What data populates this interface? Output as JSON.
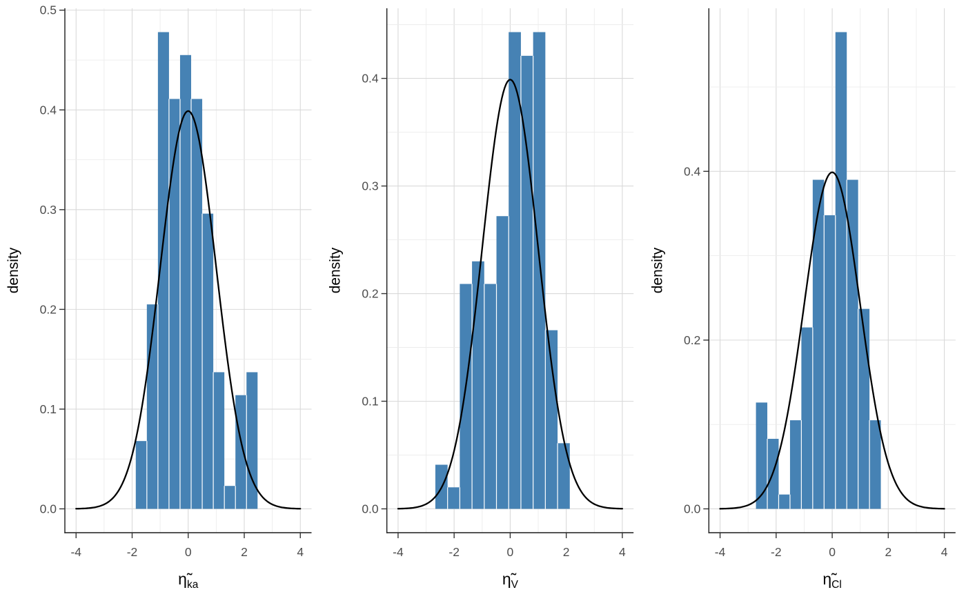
{
  "chart_data": {
    "type": "bar",
    "subtype": "histogram_with_normal_density_overlay",
    "title": "",
    "ylabel": "density",
    "grid": "on",
    "legend": "none",
    "xlim": [
      -4.4,
      4.4
    ],
    "x_ticks": [
      -4,
      -2,
      0,
      2,
      4
    ],
    "x_tick_labels": [
      "-4",
      "-2",
      "0",
      "2",
      "4"
    ],
    "panels": [
      {
        "xlabel_base": "η̃",
        "xlabel_sub": "ka",
        "ylabel": "density",
        "y_tick_values": [
          0,
          0.1,
          0.2,
          0.3,
          0.4,
          0.5
        ],
        "y_tick_labels": [
          "0.0",
          "0.1",
          "0.2",
          "0.3",
          "0.4",
          "0.5"
        ],
        "y_minor_step": 0.05,
        "ylim": [
          -0.024,
          0.502
        ],
        "bin_start": -1.87,
        "bin_width": 0.395,
        "bar_heights": [
          0.068,
          0.205,
          0.478,
          0.411,
          0.455,
          0.411,
          0.296,
          0.137,
          0.023,
          0.114,
          0.137
        ],
        "curve": {
          "type": "normal-density",
          "mean": 0,
          "sd": 1,
          "peak_density": 0.3989,
          "x_from": -4,
          "x_to": 4
        }
      },
      {
        "xlabel_base": "η̃",
        "xlabel_sub": "V",
        "ylabel": "density",
        "y_tick_values": [
          0,
          0.1,
          0.2,
          0.3,
          0.4
        ],
        "y_tick_labels": [
          "0.0",
          "0.1",
          "0.2",
          "0.3",
          "0.4"
        ],
        "y_minor_step": 0.05,
        "ylim": [
          -0.022,
          0.465
        ],
        "bin_start": -2.67,
        "bin_width": 0.436,
        "bar_heights": [
          0.041,
          0.02,
          0.209,
          0.23,
          0.209,
          0.272,
          0.443,
          0.421,
          0.443,
          0.166,
          0.061
        ],
        "curve": {
          "type": "normal-density",
          "mean": 0,
          "sd": 1,
          "peak_density": 0.3989,
          "x_from": -4,
          "x_to": 4
        }
      },
      {
        "xlabel_base": "η̃",
        "xlabel_sub": "Cl",
        "ylabel": "density",
        "y_tick_values": [
          0,
          0.2,
          0.4
        ],
        "y_tick_labels": [
          "0.0",
          "0.2",
          "0.4"
        ],
        "y_minor_step": 0.1,
        "ylim": [
          -0.028,
          0.593
        ],
        "bin_start": -2.72,
        "bin_width": 0.405,
        "bar_heights": [
          0.126,
          0.083,
          0.017,
          0.105,
          0.215,
          0.39,
          0.348,
          0.565,
          0.39,
          0.237,
          0.105
        ],
        "curve": {
          "type": "normal-density",
          "mean": 0,
          "sd": 1,
          "peak_density": 0.3989,
          "x_from": -4,
          "x_to": 4
        }
      }
    ]
  },
  "style": {
    "bar_fill": "#4682B4",
    "bar_separator": "#ffffff",
    "curve_color": "#000000",
    "grid_major": "#d9d9d9",
    "grid_minor": "#ececec",
    "axis_line": "#1a1a1a",
    "tick_mark_color": "#333333",
    "tick_label_color": "#4d4d4d",
    "axis_title_color": "#000000",
    "background": "#ffffff"
  }
}
